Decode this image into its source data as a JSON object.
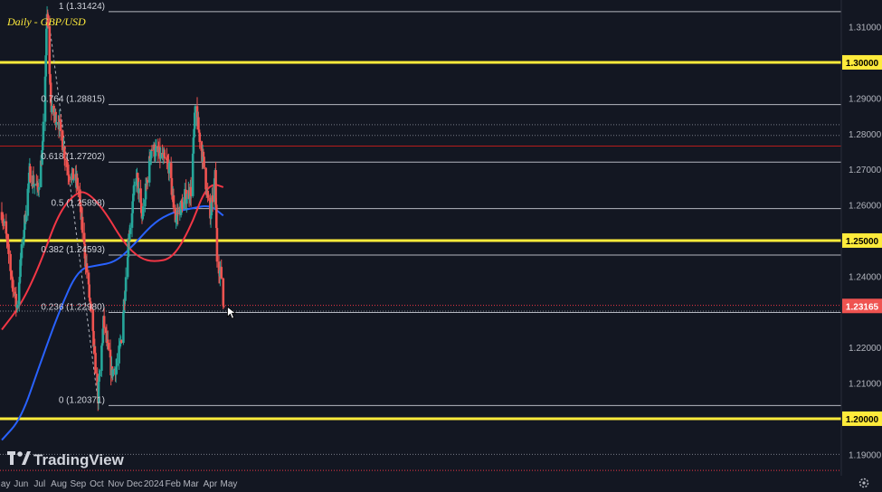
{
  "title": "Daily - GBP/USD",
  "logo": "TradingView",
  "colors": {
    "background": "#131722",
    "bull": "#26a69a",
    "bear": "#ef5350",
    "ma_short": "#f23645",
    "ma_long": "#2962ff",
    "key_level": "#ffeb3b",
    "fib_line": "#d1d4dc",
    "axis_text": "#b2b5be"
  },
  "icons": {
    "settings": "gear-icon"
  },
  "chart_data": {
    "type": "candlestick",
    "title": "Daily - GBP/USD",
    "ylim": [
      1.184,
      1.3175
    ],
    "x_axis_labels": [
      "May",
      "Jun",
      "Jul",
      "Aug",
      "Sep",
      "Oct",
      "Nov",
      "Dec",
      "2024",
      "Feb",
      "Mar",
      "Apr",
      "May"
    ],
    "x_axis_dates": [
      "2023-05-01",
      "2023-06-01",
      "2023-07-01",
      "2023-08-01",
      "2023-09-01",
      "2023-10-01",
      "2023-11-01",
      "2023-12-01",
      "2024-01-01",
      "2024-02-01",
      "2024-03-01",
      "2024-04-01",
      "2024-05-01"
    ],
    "y_axis_ticks": [
      "1.31000",
      "1.29000",
      "1.28000",
      "1.27000",
      "1.26000",
      "1.24000",
      "1.22000",
      "1.21000",
      "1.19000"
    ],
    "current_price": {
      "value": 1.23165,
      "label": "1.23165"
    },
    "key_levels": [
      {
        "value": 1.3,
        "label": "1.30000"
      },
      {
        "value": 1.25,
        "label": "1.25000"
      },
      {
        "value": 1.2,
        "label": "1.20000"
      }
    ],
    "fib_levels": [
      {
        "ratio": "1",
        "value": 1.31424,
        "label": "1 (1.31424)"
      },
      {
        "ratio": "0.764",
        "value": 1.28815,
        "label": "0.764 (1.28815)"
      },
      {
        "ratio": "0.618",
        "value": 1.27202,
        "label": "0.618 (1.27202)"
      },
      {
        "ratio": "0.5",
        "value": 1.25898,
        "label": "0.5 (1.25898)"
      },
      {
        "ratio": "0.382",
        "value": 1.24593,
        "label": "0.382 (1.24593)"
      },
      {
        "ratio": "0.236",
        "value": 1.2298,
        "label": "0.236 (1.22980)"
      },
      {
        "ratio": "0",
        "value": 1.20371,
        "label": "0 (1.20371)"
      }
    ],
    "other_lines": [
      {
        "value": 1.2765,
        "color": "#b71c1c",
        "style": "solid"
      },
      {
        "value": 1.2825,
        "color": "#787b86",
        "style": "dotted"
      },
      {
        "value": 1.2795,
        "color": "#787b86",
        "style": "dotted"
      },
      {
        "value": 1.2318,
        "color": "#f23645",
        "style": "dotted"
      },
      {
        "value": 1.2302,
        "color": "#787b86",
        "style": "dotted"
      },
      {
        "value": 1.19,
        "color": "#787b86",
        "style": "dotted"
      },
      {
        "value": 1.1855,
        "color": "#f23645",
        "style": "dotted"
      }
    ],
    "trendline": {
      "from": [
        "2023-07-14",
        1.3142
      ],
      "to": [
        "2023-10-04",
        1.2037
      ],
      "style": "dashed"
    },
    "ohlc_anchors": [
      [
        "2023-05-01",
        1.258
      ],
      [
        "2023-05-08",
        1.251
      ],
      [
        "2023-05-15",
        1.242
      ],
      [
        "2023-05-25",
        1.231
      ],
      [
        "2023-06-02",
        1.247
      ],
      [
        "2023-06-15",
        1.269
      ],
      [
        "2023-06-28",
        1.264
      ],
      [
        "2023-07-06",
        1.276
      ],
      [
        "2023-07-13",
        1.313
      ],
      [
        "2023-07-20",
        1.286
      ],
      [
        "2023-07-31",
        1.284
      ],
      [
        "2023-08-15",
        1.27
      ],
      [
        "2023-08-31",
        1.266
      ],
      [
        "2023-09-14",
        1.243
      ],
      [
        "2023-09-22",
        1.229
      ],
      [
        "2023-10-03",
        1.206
      ],
      [
        "2023-10-12",
        1.227
      ],
      [
        "2023-10-25",
        1.213
      ],
      [
        "2023-11-03",
        1.215
      ],
      [
        "2023-11-10",
        1.223
      ],
      [
        "2023-11-21",
        1.25
      ],
      [
        "2023-12-04",
        1.269
      ],
      [
        "2023-12-13",
        1.256
      ],
      [
        "2023-12-28",
        1.276
      ],
      [
        "2024-01-10",
        1.274
      ],
      [
        "2024-01-25",
        1.271
      ],
      [
        "2024-02-05",
        1.256
      ],
      [
        "2024-02-20",
        1.262
      ],
      [
        "2024-03-01",
        1.264
      ],
      [
        "2024-03-08",
        1.287
      ],
      [
        "2024-03-21",
        1.272
      ],
      [
        "2024-04-01",
        1.256
      ],
      [
        "2024-04-09",
        1.268
      ],
      [
        "2024-04-12",
        1.245
      ],
      [
        "2024-04-19",
        1.24
      ],
      [
        "2024-04-22",
        1.232
      ]
    ],
    "ma_red": [
      [
        "2023-05-01",
        1.225
      ],
      [
        "2023-06-01",
        1.232
      ],
      [
        "2023-07-01",
        1.243
      ],
      [
        "2023-08-01",
        1.258
      ],
      [
        "2023-09-01",
        1.264
      ],
      [
        "2023-09-20",
        1.263
      ],
      [
        "2023-10-15",
        1.258
      ],
      [
        "2023-11-15",
        1.249
      ],
      [
        "2023-12-10",
        1.245
      ],
      [
        "2024-01-01",
        1.244
      ],
      [
        "2024-02-01",
        1.245
      ],
      [
        "2024-03-01",
        1.254
      ],
      [
        "2024-03-20",
        1.263
      ],
      [
        "2024-04-05",
        1.266
      ],
      [
        "2024-04-22",
        1.265
      ]
    ],
    "ma_blue": [
      [
        "2023-05-01",
        1.194
      ],
      [
        "2023-06-01",
        1.2
      ],
      [
        "2023-07-01",
        1.215
      ],
      [
        "2023-08-01",
        1.23
      ],
      [
        "2023-09-01",
        1.242
      ],
      [
        "2023-10-01",
        1.243
      ],
      [
        "2023-11-01",
        1.244
      ],
      [
        "2023-12-01",
        1.249
      ],
      [
        "2024-01-01",
        1.255
      ],
      [
        "2024-02-01",
        1.258
      ],
      [
        "2024-03-01",
        1.259
      ],
      [
        "2024-04-01",
        1.26
      ],
      [
        "2024-04-22",
        1.257
      ]
    ]
  }
}
